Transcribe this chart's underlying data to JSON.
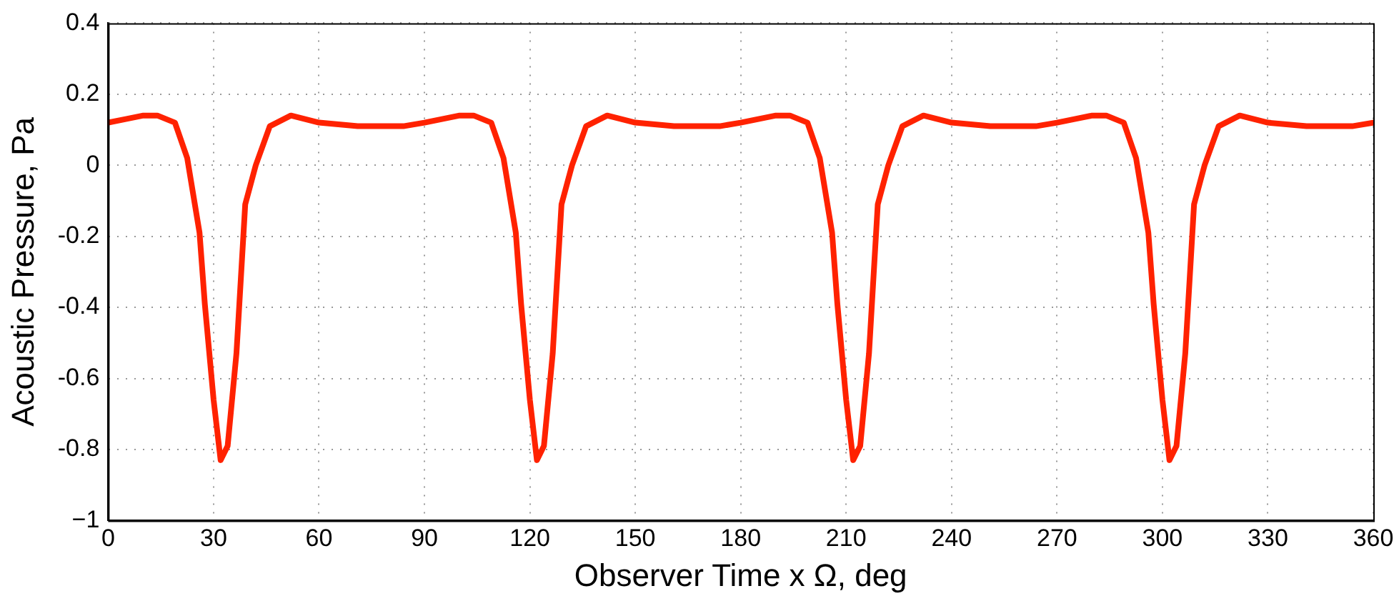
{
  "chart_data": {
    "type": "line",
    "xlabel": "Observer Time x Ω, deg",
    "ylabel": "Acoustic Pressure, Pa",
    "xlim": [
      0,
      360
    ],
    "xticks": [
      0,
      30,
      60,
      90,
      120,
      150,
      180,
      210,
      240,
      270,
      300,
      330,
      360
    ],
    "ylim": [
      -1,
      0.4
    ],
    "yticks": [
      {
        "value": -1,
        "label": "−1"
      },
      -0.8,
      -0.6,
      -0.4,
      -0.2,
      0,
      0.2,
      0.4
    ],
    "grid": true,
    "marker": "none",
    "line_style": "solid",
    "series": [
      {
        "color": "#ff2200",
        "x": [
          0,
          5,
          10,
          14,
          19,
          22.5,
          26,
          27.5,
          30,
          32,
          34,
          36.5,
          39,
          42,
          46,
          52,
          60,
          71,
          84,
          90,
          95,
          100,
          104,
          109,
          112.5,
          116,
          117.5,
          120,
          122,
          124,
          126.5,
          129,
          132,
          136,
          142,
          150,
          161,
          174,
          180,
          185,
          190,
          194,
          199,
          202.5,
          206,
          207.5,
          210,
          212,
          214,
          216.5,
          219,
          222,
          226,
          232,
          240,
          251,
          264,
          270,
          275,
          280,
          284,
          289,
          292.5,
          296,
          297.5,
          300,
          302,
          304,
          306.5,
          309,
          312,
          316,
          322,
          330,
          341,
          354,
          360
        ],
        "values": [
          0.12,
          0.13,
          0.14,
          0.14,
          0.12,
          0.02,
          -0.19,
          -0.39,
          -0.66,
          -0.83,
          -0.79,
          -0.53,
          -0.11,
          0,
          0.11,
          0.14,
          0.12,
          0.11,
          0.11,
          0.12,
          0.13,
          0.14,
          0.14,
          0.12,
          0.02,
          -0.19,
          -0.39,
          -0.66,
          -0.83,
          -0.79,
          -0.53,
          -0.11,
          0,
          0.11,
          0.14,
          0.12,
          0.11,
          0.11,
          0.12,
          0.13,
          0.14,
          0.14,
          0.12,
          0.02,
          -0.19,
          -0.39,
          -0.66,
          -0.83,
          -0.79,
          -0.53,
          -0.11,
          0,
          0.11,
          0.14,
          0.12,
          0.11,
          0.11,
          0.12,
          0.13,
          0.14,
          0.14,
          0.12,
          0.02,
          -0.19,
          -0.39,
          -0.66,
          -0.83,
          -0.79,
          -0.53,
          -0.11,
          0,
          0.11,
          0.14,
          0.12,
          0.11,
          0.11,
          0.12
        ]
      }
    ]
  }
}
